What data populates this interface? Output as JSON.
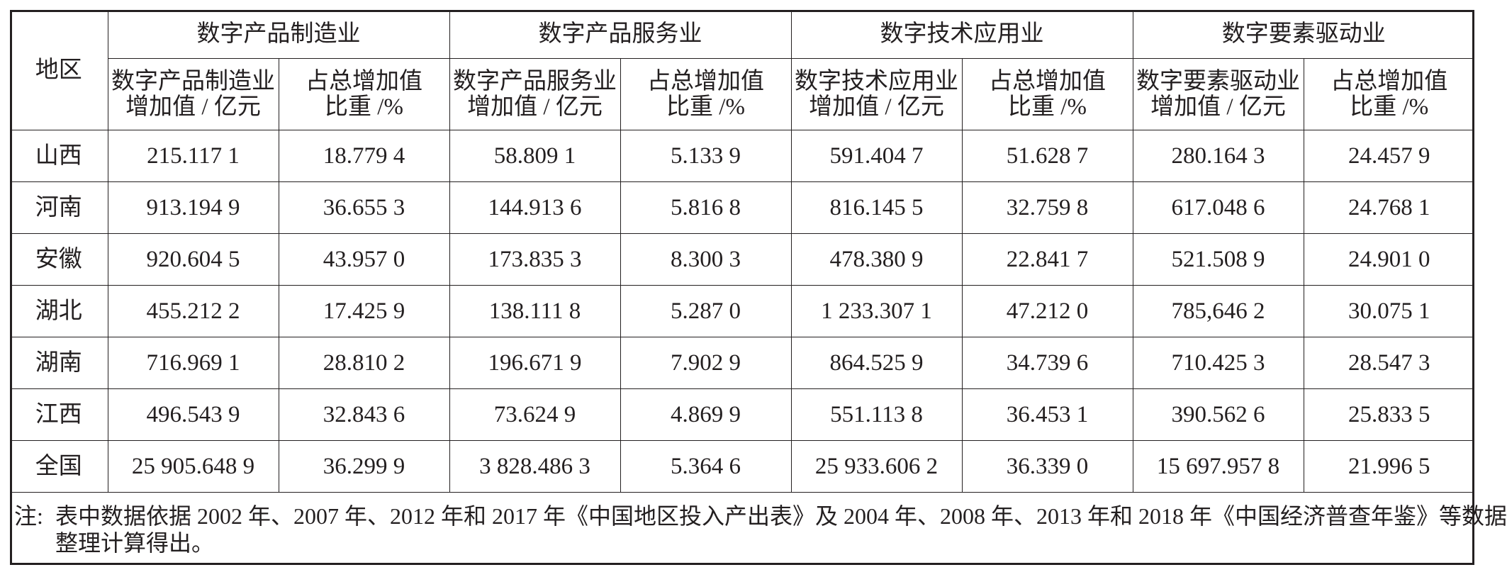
{
  "table": {
    "region_header": "地区",
    "groups": [
      {
        "title": "数字产品制造业",
        "col1": [
          "数字产品制造业",
          "增加值 / 亿元"
        ],
        "col2": [
          "占总增加值",
          "比重 /%"
        ]
      },
      {
        "title": "数字产品服务业",
        "col1": [
          "数字产品服务业",
          "增加值 / 亿元"
        ],
        "col2": [
          "占总增加值",
          "比重 /%"
        ]
      },
      {
        "title": "数字技术应用业",
        "col1": [
          "数字技术应用业",
          "增加值 / 亿元"
        ],
        "col2": [
          "占总增加值",
          "比重 /%"
        ]
      },
      {
        "title": "数字要素驱动业",
        "col1": [
          "数字要素驱动业",
          "增加值 / 亿元"
        ],
        "col2": [
          "占总增加值",
          "比重 /%"
        ]
      }
    ],
    "rows": [
      {
        "region": "山西",
        "values": [
          "215.117 1",
          "18.779 4",
          "58.809 1",
          "5.133 9",
          "591.404 7",
          "51.628 7",
          "280.164 3",
          "24.457 9"
        ]
      },
      {
        "region": "河南",
        "values": [
          "913.194 9",
          "36.655 3",
          "144.913 6",
          "5.816 8",
          "816.145 5",
          "32.759 8",
          "617.048 6",
          "24.768 1"
        ]
      },
      {
        "region": "安徽",
        "values": [
          "920.604 5",
          "43.957 0",
          "173.835 3",
          "8.300 3",
          "478.380 9",
          "22.841 7",
          "521.508 9",
          "24.901 0"
        ]
      },
      {
        "region": "湖北",
        "values": [
          "455.212 2",
          "17.425 9",
          "138.111 8",
          "5.287 0",
          "1 233.307 1",
          "47.212 0",
          "785,646 2",
          "30.075 1"
        ]
      },
      {
        "region": "湖南",
        "values": [
          "716.969 1",
          "28.810 2",
          "196.671 9",
          "7.902 9",
          "864.525 9",
          "34.739 6",
          "710.425 3",
          "28.547 3"
        ]
      },
      {
        "region": "江西",
        "values": [
          "496.543 9",
          "32.843 6",
          "73.624 9",
          "4.869 9",
          "551.113 8",
          "36.453 1",
          "390.562 6",
          "25.833 5"
        ]
      },
      {
        "region": "全国",
        "values": [
          "25 905.648 9",
          "36.299 9",
          "3 828.486 3",
          "5.364 6",
          "25 933.606 2",
          "36.339 0",
          "15 697.957 8",
          "21.996 5"
        ]
      }
    ],
    "note": {
      "label": "注:",
      "lines": [
        "表中数据依据 2002 年、2007 年、2012 年和 2017 年《中国地区投入产出表》及 2004 年、2008 年、2013 年和 2018 年《中国经济普查年鉴》等数据",
        "整理计算得出。"
      ]
    }
  }
}
